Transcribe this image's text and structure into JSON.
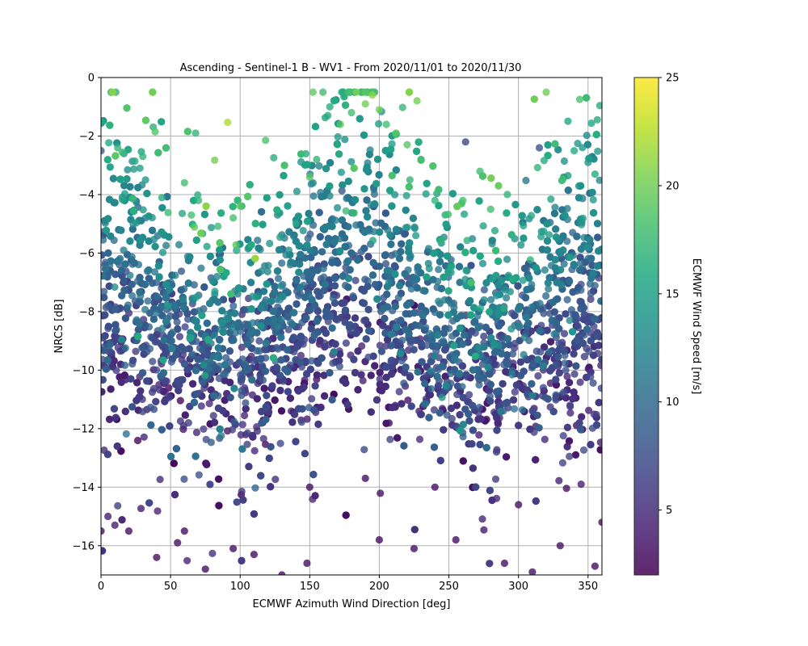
{
  "chart_data": {
    "type": "scatter",
    "title": "Ascending - Sentinel-1 B - WV1 - From 2020/11/01 to 2020/11/30",
    "xlabel": "ECMWF Azimuth Wind Direction [deg]",
    "ylabel": "NRCS [dB]",
    "xlim": [
      0,
      360
    ],
    "ylim": [
      -17,
      0
    ],
    "xticks": [
      0,
      50,
      100,
      150,
      200,
      250,
      300,
      350
    ],
    "yticks": [
      0,
      -2,
      -4,
      -6,
      -8,
      -10,
      -12,
      -14,
      -16
    ],
    "grid": true,
    "colorbar": {
      "label": "ECMWF Wind Speed [m/s]",
      "colormap": "viridis",
      "range": [
        2,
        25
      ],
      "ticks": [
        5,
        10,
        15,
        20,
        25
      ]
    },
    "points": [
      [
        0,
        -1.5,
        9
      ],
      [
        0,
        -2.5,
        9
      ],
      [
        12,
        -2.4,
        17
      ],
      [
        30,
        -2.7,
        17
      ],
      [
        28,
        -3.1,
        15
      ],
      [
        32,
        -3.5,
        14
      ],
      [
        68,
        -1.9,
        17
      ],
      [
        60,
        -3.6,
        18
      ],
      [
        70,
        -4.2,
        17
      ],
      [
        65,
        -4.7,
        18
      ],
      [
        48,
        -7.8,
        15
      ],
      [
        163,
        -1.3,
        16
      ],
      [
        172,
        -1.6,
        19
      ],
      [
        180,
        -1.2,
        18
      ],
      [
        190,
        -0.9,
        20
      ],
      [
        195,
        -0.6,
        21
      ],
      [
        200,
        -1.1,
        20
      ],
      [
        205,
        -1.6,
        18
      ],
      [
        212,
        -1.9,
        19
      ],
      [
        220,
        -2.3,
        19
      ],
      [
        230,
        -2.8,
        14
      ],
      [
        262,
        -2.2,
        7
      ],
      [
        315,
        -2.4,
        8
      ],
      [
        340,
        -2.5,
        16
      ],
      [
        350,
        -2.9,
        14
      ],
      [
        355,
        -3.3,
        16
      ],
      [
        240,
        -4.2,
        17
      ],
      [
        260,
        -4.2,
        18
      ],
      [
        280,
        -4.5,
        18
      ],
      [
        292,
        -4.0,
        17
      ],
      [
        100,
        -4.4,
        19
      ],
      [
        95,
        -4.8,
        18
      ],
      [
        150,
        -3.4,
        19
      ],
      [
        155,
        -2.8,
        17
      ],
      [
        222,
        -3.5,
        17
      ],
      [
        5,
        -15.0,
        4
      ],
      [
        10,
        -15.3,
        4
      ],
      [
        20,
        -15.5,
        3
      ],
      [
        40,
        -16.4,
        3
      ],
      [
        55,
        -15.9,
        3
      ],
      [
        75,
        -16.8,
        3
      ],
      [
        95,
        -16.1,
        3
      ],
      [
        110,
        -16.3,
        3
      ],
      [
        130,
        -17.0,
        3
      ],
      [
        148,
        -16.6,
        3
      ],
      [
        200,
        -15.8,
        3
      ],
      [
        225,
        -16.1,
        3
      ],
      [
        255,
        -15.8,
        3
      ],
      [
        290,
        -16.6,
        3
      ],
      [
        310,
        -16.9,
        3
      ],
      [
        330,
        -16.0,
        3
      ],
      [
        355,
        -16.7,
        3
      ],
      [
        360,
        -15.2,
        3
      ],
      [
        0,
        -15.5,
        3
      ],
      [
        60,
        -15.5,
        3
      ],
      [
        150,
        -14.0,
        3
      ],
      [
        190,
        -13.7,
        3
      ],
      [
        240,
        -14.0,
        3
      ],
      [
        300,
        -14.6,
        3
      ],
      [
        345,
        -13.9,
        4
      ]
    ]
  }
}
